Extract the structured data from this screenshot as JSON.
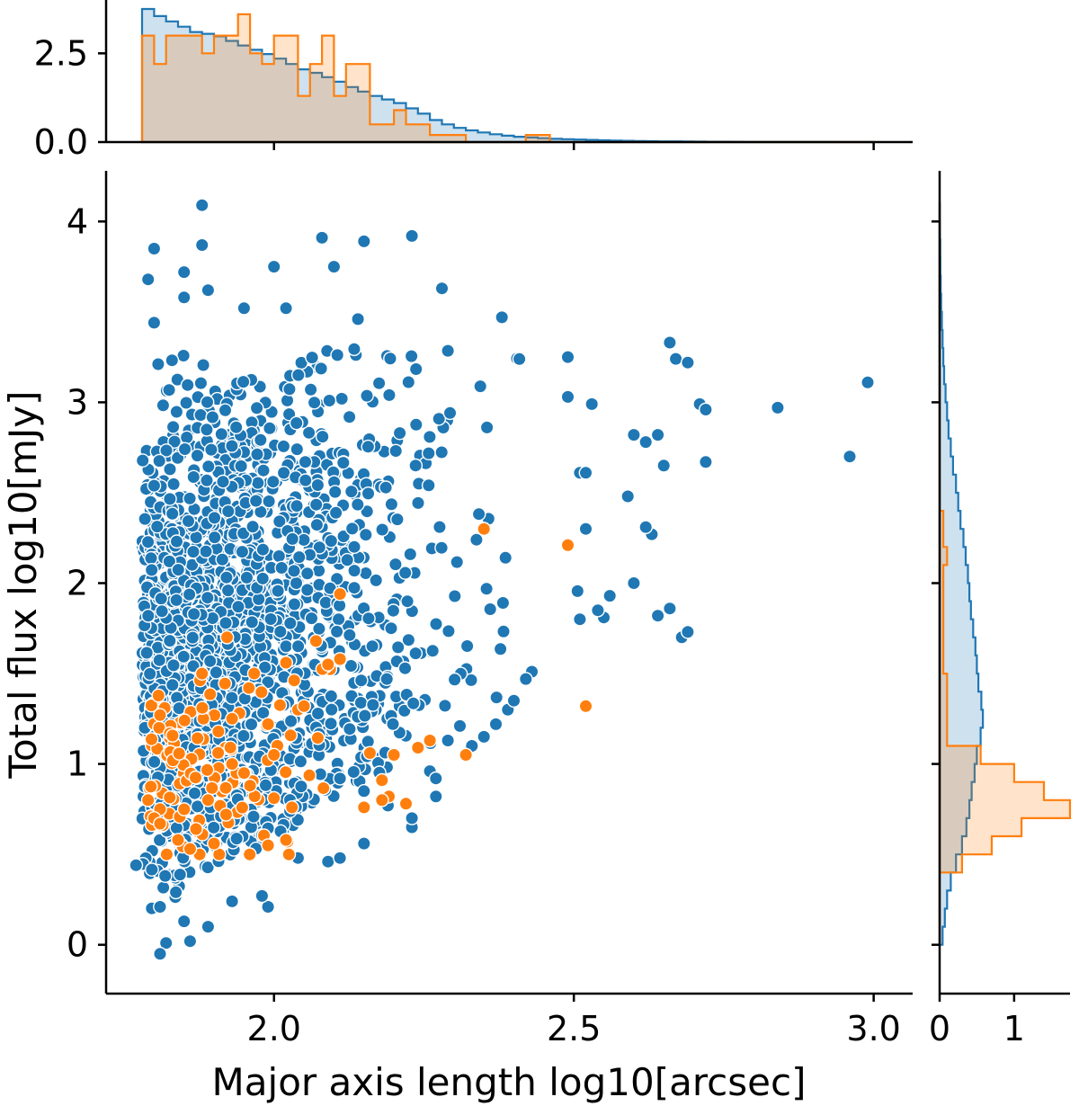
{
  "chart_data": {
    "type": "scatter",
    "title": "",
    "xlabel": "Major axis length log10[arcsec]",
    "ylabel": "Total flux log10[mJy]",
    "xlim": [
      1.72,
      3.065
    ],
    "ylim": [
      -0.27,
      4.28
    ],
    "xticks": [
      2.0,
      2.5,
      3.0
    ],
    "xtick_labels": [
      "2.0",
      "2.5",
      "3.0"
    ],
    "yticks": [
      0,
      1,
      2,
      3,
      4
    ],
    "ytick_labels": [
      "0",
      "1",
      "2",
      "3",
      "4"
    ],
    "grid": false,
    "legend": "none",
    "colors": {
      "blue": "#1f77b4",
      "orange": "#ff7f0e"
    },
    "series": [
      {
        "color": "#1f77b4",
        "marker": "circle",
        "generated_from_distribution": true,
        "count": 1900,
        "points": [
          [
            1.88,
            4.09
          ],
          [
            1.8,
            3.85
          ],
          [
            2.08,
            3.91
          ],
          [
            2.23,
            3.92
          ],
          [
            2.15,
            3.89
          ],
          [
            1.88,
            3.87
          ],
          [
            2.0,
            3.75
          ],
          [
            2.1,
            3.75
          ],
          [
            1.85,
            3.72
          ],
          [
            1.79,
            3.68
          ],
          [
            2.28,
            3.63
          ],
          [
            1.89,
            3.62
          ],
          [
            1.85,
            3.58
          ],
          [
            2.38,
            3.47
          ],
          [
            2.14,
            3.46
          ],
          [
            1.8,
            3.44
          ],
          [
            1.95,
            3.52
          ],
          [
            2.02,
            3.52
          ],
          [
            2.99,
            3.11
          ],
          [
            2.84,
            2.97
          ],
          [
            2.96,
            2.7
          ],
          [
            2.71,
            2.99
          ],
          [
            2.72,
            2.96
          ],
          [
            2.72,
            2.67
          ],
          [
            2.64,
            2.82
          ],
          [
            2.66,
            3.33
          ],
          [
            2.67,
            3.24
          ],
          [
            2.69,
            3.22
          ],
          [
            2.53,
            2.99
          ],
          [
            2.49,
            3.03
          ],
          [
            2.49,
            3.25
          ],
          [
            2.62,
            2.78
          ],
          [
            2.6,
            2.82
          ],
          [
            2.59,
            2.48
          ],
          [
            2.63,
            2.27
          ],
          [
            2.62,
            2.31
          ],
          [
            2.6,
            2.0
          ],
          [
            2.56,
            1.93
          ],
          [
            2.55,
            1.81
          ],
          [
            2.54,
            1.85
          ],
          [
            2.51,
            1.8
          ],
          [
            2.52,
            2.3
          ],
          [
            2.51,
            2.61
          ],
          [
            2.52,
            2.61
          ],
          [
            2.68,
            1.7
          ],
          [
            2.69,
            1.73
          ],
          [
            2.66,
            1.86
          ],
          [
            2.64,
            1.82
          ],
          [
            2.65,
            2.65
          ],
          [
            2.43,
            1.51
          ],
          [
            2.42,
            1.47
          ],
          [
            2.39,
            1.3
          ],
          [
            2.4,
            1.35
          ],
          [
            2.37,
            1.22
          ],
          [
            2.35,
            1.15
          ],
          [
            2.33,
            1.1
          ],
          [
            2.31,
            1.21
          ],
          [
            2.29,
            1.13
          ],
          [
            2.26,
            0.96
          ],
          [
            2.27,
            0.92
          ],
          [
            2.19,
            0.77
          ],
          [
            2.15,
            0.85
          ],
          [
            2.11,
            0.92
          ],
          [
            2.04,
            0.48
          ],
          [
            1.99,
            0.21
          ],
          [
            1.98,
            0.27
          ],
          [
            1.93,
            0.24
          ],
          [
            1.89,
            0.1
          ],
          [
            1.86,
            0.02
          ],
          [
            1.82,
            0.01
          ],
          [
            1.81,
            -0.05
          ],
          [
            1.77,
            0.44
          ],
          [
            1.81,
            0.21
          ],
          [
            1.85,
            0.13
          ],
          [
            2.09,
            0.46
          ],
          [
            2.11,
            0.48
          ],
          [
            2.15,
            0.56
          ],
          [
            2.23,
            0.65
          ],
          [
            2.23,
            0.7
          ],
          [
            2.27,
            0.82
          ]
        ]
      },
      {
        "color": "#ff7f0e",
        "marker": "circle",
        "count": 150,
        "points": [
          [
            2.35,
            2.3
          ],
          [
            2.49,
            2.21
          ],
          [
            2.52,
            1.32
          ],
          [
            2.32,
            1.05
          ],
          [
            2.11,
            1.94
          ],
          [
            2.07,
            1.68
          ],
          [
            2.02,
            1.56
          ],
          [
            2.11,
            1.58
          ],
          [
            2.09,
            1.55
          ],
          [
            1.88,
            1.5
          ],
          [
            1.81,
            1.27
          ],
          [
            1.93,
            1.25
          ],
          [
            1.99,
            1.22
          ],
          [
            2.04,
            1.3
          ],
          [
            2.05,
            1.32
          ],
          [
            2.0,
            1.05
          ],
          [
            1.93,
            1.0
          ],
          [
            1.95,
            0.95
          ],
          [
            1.96,
            0.88
          ],
          [
            1.89,
            0.8
          ],
          [
            1.81,
            0.75
          ],
          [
            1.79,
            0.8
          ],
          [
            1.8,
            0.7
          ],
          [
            1.81,
            0.67
          ],
          [
            1.84,
            0.58
          ],
          [
            1.86,
            0.53
          ],
          [
            1.87,
            0.64
          ],
          [
            1.9,
            0.56
          ],
          [
            1.92,
            0.72
          ],
          [
            1.99,
            0.55
          ],
          [
            2.02,
            0.58
          ],
          [
            2.03,
            0.76
          ],
          [
            2.15,
            0.76
          ],
          [
            2.22,
            0.78
          ],
          [
            2.18,
            0.8
          ],
          [
            2.26,
            1.13
          ],
          [
            2.24,
            1.09
          ],
          [
            2.2,
            1.05
          ],
          [
            2.16,
            1.06
          ],
          [
            2.18,
            0.91
          ]
        ]
      }
    ],
    "top_hist": {
      "type": "histogram-step",
      "x_range": [
        1.78,
        3.0
      ],
      "yticks": [
        0.0,
        2.5
      ],
      "ytick_labels": [
        "0.0",
        "2.5"
      ],
      "ylim": [
        0.0,
        3.8
      ],
      "bins": [
        1.78,
        1.8,
        1.82,
        1.84,
        1.86,
        1.88,
        1.9,
        1.92,
        1.94,
        1.96,
        1.98,
        2.0,
        2.02,
        2.04,
        2.06,
        2.08,
        2.1,
        2.12,
        2.14,
        2.16,
        2.18,
        2.2,
        2.22,
        2.24,
        2.26,
        2.28,
        2.3,
        2.32,
        2.34,
        2.36,
        2.38,
        2.4,
        2.42,
        2.44,
        2.46,
        2.48,
        2.5,
        2.52,
        2.54,
        2.56,
        2.58,
        2.6,
        2.62,
        2.64,
        2.66,
        2.68,
        2.7,
        2.72,
        2.74,
        2.76,
        2.78,
        2.8,
        2.82,
        2.84,
        2.86,
        2.88,
        2.9,
        2.92,
        2.94,
        2.96,
        2.98,
        3.0
      ],
      "blue_values": [
        3.75,
        3.55,
        3.4,
        3.25,
        3.1,
        3.05,
        2.98,
        2.85,
        2.72,
        2.6,
        2.48,
        2.35,
        2.2,
        2.05,
        1.95,
        1.83,
        1.7,
        1.55,
        1.42,
        1.3,
        1.2,
        1.1,
        0.95,
        0.8,
        0.62,
        0.5,
        0.4,
        0.33,
        0.27,
        0.22,
        0.18,
        0.15,
        0.13,
        0.11,
        0.09,
        0.08,
        0.07,
        0.06,
        0.05,
        0.04,
        0.035,
        0.03,
        0.025,
        0.02,
        0.02,
        0.015,
        0.012,
        0.01,
        0.01,
        0.008,
        0.006,
        0.005,
        0.004,
        0.003,
        0.003,
        0.002,
        0.002,
        0.002,
        0.001,
        0.001,
        0.001
      ],
      "orange_values": [
        3.0,
        2.2,
        3.0,
        3.0,
        3.0,
        2.5,
        3.0,
        3.0,
        3.6,
        2.5,
        2.2,
        3.0,
        3.0,
        1.3,
        2.2,
        3.0,
        1.3,
        2.2,
        2.2,
        0.5,
        0.5,
        0.9,
        0.5,
        0.5,
        0.2,
        0.2,
        0.2,
        0.0,
        0.0,
        0.0,
        0.0,
        0.0,
        0.2,
        0.2,
        0.0,
        0.0,
        0.0,
        0.0,
        0.0,
        0.0,
        0.0,
        0.0,
        0.0,
        0.0,
        0.0,
        0.0,
        0.0,
        0.0,
        0.0,
        0.0,
        0.0,
        0.0,
        0.0,
        0.0,
        0.0,
        0.0,
        0.0,
        0.0,
        0.0,
        0.0,
        0.0
      ]
    },
    "right_hist": {
      "type": "histogram-step",
      "xticks": [
        0,
        1
      ],
      "xtick_labels": [
        "0",
        "1"
      ],
      "xlim": [
        0,
        1.75
      ],
      "bins": [
        0.0,
        0.1,
        0.2,
        0.3,
        0.4,
        0.5,
        0.6,
        0.7,
        0.8,
        0.9,
        1.0,
        1.1,
        1.2,
        1.3,
        1.4,
        1.5,
        1.6,
        1.7,
        1.8,
        1.9,
        2.0,
        2.1,
        2.2,
        2.3,
        2.4,
        2.5,
        2.6,
        2.7,
        2.8,
        2.9,
        3.0,
        3.1,
        3.2,
        3.3,
        3.4,
        3.5,
        3.6,
        3.7,
        3.8,
        3.9,
        4.0,
        4.1
      ],
      "blue_values": [
        0.04,
        0.07,
        0.1,
        0.15,
        0.22,
        0.3,
        0.36,
        0.4,
        0.43,
        0.47,
        0.5,
        0.55,
        0.58,
        0.56,
        0.52,
        0.5,
        0.48,
        0.45,
        0.42,
        0.4,
        0.38,
        0.35,
        0.32,
        0.28,
        0.25,
        0.22,
        0.18,
        0.15,
        0.12,
        0.1,
        0.08,
        0.06,
        0.05,
        0.04,
        0.03,
        0.02,
        0.015,
        0.01,
        0.008,
        0.005,
        0.003
      ],
      "orange_values": [
        0.0,
        0.0,
        0.0,
        0.0,
        0.3,
        0.7,
        1.1,
        1.75,
        1.4,
        1.0,
        0.55,
        0.1,
        0.1,
        0.1,
        0.1,
        0.05,
        0.05,
        0.05,
        0.05,
        0.05,
        0.05,
        0.1,
        0.05,
        0.05,
        0.0,
        0.0,
        0.0,
        0.0,
        0.0,
        0.0,
        0.0,
        0.0,
        0.0,
        0.0,
        0.0,
        0.0,
        0.0,
        0.0,
        0.0,
        0.0,
        0.0
      ]
    }
  }
}
